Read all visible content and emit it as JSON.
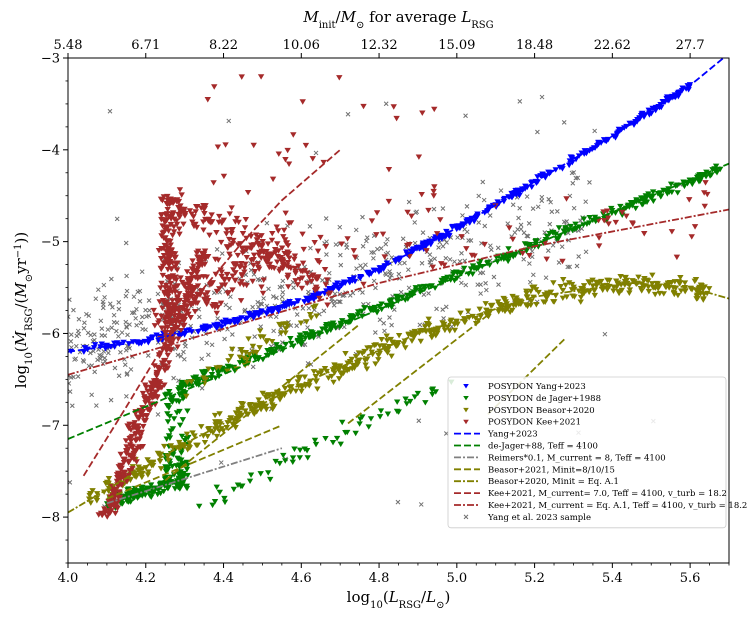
{
  "chart_data": {
    "type": "scatter",
    "xlabel": "log₁₀(L_RSG/L⊙)",
    "ylabel": "log₁₀(Ṁ_RSG/(M⊙yr⁻¹))",
    "top_xlabel": "M_init/M⊙ for average L_RSG",
    "xlim": [
      4.0,
      5.7
    ],
    "ylim": [
      -8.5,
      -3.0
    ],
    "x_ticks": [
      "4.0",
      "4.2",
      "4.4",
      "4.6",
      "4.8",
      "5.0",
      "5.2",
      "5.4",
      "5.6"
    ],
    "y_ticks": [
      "−8",
      "−7",
      "−6",
      "−5",
      "−4",
      "−3"
    ],
    "top_ticks": [
      {
        "value": 4.0,
        "label": "5.48"
      },
      {
        "value": 4.2,
        "label": "6.71"
      },
      {
        "value": 4.4,
        "label": "8.22"
      },
      {
        "value": 4.6,
        "label": "10.06"
      },
      {
        "value": 4.8,
        "label": "12.32"
      },
      {
        "value": 5.0,
        "label": "15.09"
      },
      {
        "value": 5.2,
        "label": "18.48"
      },
      {
        "value": 5.4,
        "label": "22.62"
      },
      {
        "value": 5.6,
        "label": "27.7"
      }
    ],
    "lines": [
      {
        "name": "Yang+2023",
        "color": "#0000ff",
        "dash": "7,3",
        "x": [
          4.0,
          4.2,
          4.4,
          4.6,
          4.8,
          5.0,
          5.2,
          5.4,
          5.6,
          5.7
        ],
        "y": [
          -6.2,
          -6.08,
          -5.9,
          -5.65,
          -5.3,
          -4.85,
          -4.35,
          -3.85,
          -3.3,
          -2.95
        ]
      },
      {
        "name": "de Jager+88, Teff = 4100",
        "color": "#008000",
        "dash": "7,3",
        "x": [
          4.0,
          5.7
        ],
        "y": [
          -7.15,
          -4.15
        ]
      },
      {
        "name": "Reimers*0.1, M_current = 8, Teff = 4100",
        "color": "#808080",
        "dash": "7,2,2,2",
        "x": [
          4.1,
          4.55
        ],
        "y": [
          -7.85,
          -7.25
        ]
      },
      {
        "name": "Beasor+2021, Minit=8/10/15",
        "color": "#808000",
        "dash": "7,3",
        "x": [
          4.1,
          4.55
        ],
        "y": [
          -7.8,
          -7.0
        ]
      },
      {
        "name": "Beasor+2020, Minit = Eq. A.1",
        "color": "#808000",
        "dash": "7,2,2,2",
        "x": [
          4.0,
          4.3,
          4.6,
          4.9,
          5.2,
          5.45,
          5.6,
          5.7
        ],
        "y": [
          -7.95,
          -7.2,
          -6.55,
          -6.0,
          -5.6,
          -5.45,
          -5.5,
          -5.62
        ]
      },
      {
        "name": "Kee+2021, M_current= 7.0, Teff = 4100, v_turb = 18.2",
        "color": "#a52a2a",
        "dash": "7,3",
        "x": [
          4.04,
          4.15,
          4.25,
          4.35,
          4.45,
          4.55,
          4.7
        ],
        "y": [
          -7.55,
          -6.8,
          -6.1,
          -5.5,
          -5.0,
          -4.55,
          -4.0
        ]
      },
      {
        "name": "Kee+2021, M_current = Eq. A.1, Teff = 4100, v_turb = 18.2",
        "color": "#a52a2a",
        "dash": "7,2,2,2",
        "x": [
          4.0,
          4.4,
          4.8,
          5.2,
          5.7
        ],
        "y": [
          -6.45,
          -5.95,
          -5.45,
          -5.05,
          -4.65
        ]
      }
    ],
    "extra_lines": [
      {
        "color": "#808000",
        "dash": "7,3",
        "x": [
          4.25,
          4.75
        ],
        "y": [
          -7.6,
          -5.9
        ]
      },
      {
        "color": "#808000",
        "dash": "7,3",
        "x": [
          4.72,
          5.08
        ],
        "y": [
          -6.98,
          -5.8
        ]
      },
      {
        "color": "#808000",
        "dash": "7,3",
        "x": [
          5.08,
          5.28
        ],
        "y": [
          -6.88,
          -6.05
        ]
      }
    ],
    "series": [
      {
        "name": "POSYDON Yang+2023",
        "color": "#0000ff",
        "marker": "triangle-down"
      },
      {
        "name": "POSYDON de Jager+1988",
        "color": "#008000",
        "marker": "triangle-down"
      },
      {
        "name": "POSYDON Beasor+2020",
        "color": "#808000",
        "marker": "triangle-down"
      },
      {
        "name": "POSYDON Kee+2021",
        "color": "#a52a2a",
        "marker": "triangle-down"
      },
      {
        "name": "Yang et al. 2023 sample",
        "color": "#707070",
        "marker": "x"
      }
    ],
    "legend": {
      "placement": "lower-right",
      "entries": [
        {
          "label": "POSYDON Yang+2023",
          "kind": "marker",
          "color": "#0000ff"
        },
        {
          "label": "POSYDON de Jager+1988",
          "kind": "marker",
          "color": "#008000"
        },
        {
          "label": "POSYDON Beasor+2020",
          "kind": "marker",
          "color": "#808000"
        },
        {
          "label": "POSYDON Kee+2021",
          "kind": "marker",
          "color": "#a52a2a"
        },
        {
          "label": "Yang+2023",
          "kind": "line",
          "color": "#0000ff",
          "dash": "7,3"
        },
        {
          "label": "de-Jager+88, Teff = 4100",
          "kind": "line",
          "color": "#008000",
          "dash": "7,3"
        },
        {
          "label": "Reimers*0.1, M_current = 8, Teff = 4100",
          "kind": "line",
          "color": "#808080",
          "dash": "7,2,2,2"
        },
        {
          "label": "Beasor+2021, Minit=8/10/15",
          "kind": "line",
          "color": "#808000",
          "dash": "7,3"
        },
        {
          "label": "Beasor+2020, Minit = Eq. A.1",
          "kind": "line",
          "color": "#808000",
          "dash": "7,2,2,2"
        },
        {
          "label": "Kee+2021, M_current= 7.0, Teff = 4100, v_turb = 18.2",
          "kind": "line",
          "color": "#a52a2a",
          "dash": "7,3"
        },
        {
          "label": "Kee+2021, M_current = Eq. A.1, Teff = 4100, v_turb = 18.2",
          "kind": "line",
          "color": "#a52a2a",
          "dash": "7,2,2,2"
        },
        {
          "label": "Yang et al. 2023 sample",
          "kind": "x",
          "color": "#707070"
        }
      ]
    }
  }
}
